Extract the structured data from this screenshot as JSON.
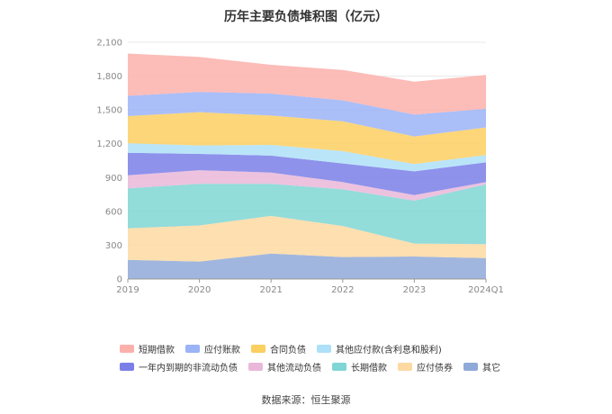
{
  "page": {
    "source": "数据来源：恒生聚源"
  },
  "chart_data": {
    "type": "area",
    "stacked": true,
    "title": "历年主要负债堆积图（亿元）",
    "x": [
      "2019",
      "2020",
      "2021",
      "2022",
      "2023",
      "2024Q1"
    ],
    "ylim": [
      0,
      2100
    ],
    "yticks": [
      "0",
      "300",
      "600",
      "900",
      "1,200",
      "1,500",
      "1,800",
      "2,100"
    ],
    "yticks_values": [
      0,
      300,
      600,
      900,
      1200,
      1500,
      1800,
      2100
    ],
    "grid": true,
    "legend_position": "bottom",
    "series": [
      {
        "name": "其它",
        "color": "#8fa9d8",
        "values": [
          170,
          155,
          225,
          195,
          200,
          185
        ]
      },
      {
        "name": "应付债券",
        "color": "#fdd9a2",
        "values": [
          280,
          320,
          335,
          275,
          115,
          125
        ]
      },
      {
        "name": "长期借款",
        "color": "#7fd6d4",
        "values": [
          355,
          370,
          285,
          325,
          380,
          530
        ]
      },
      {
        "name": "其他流动负债",
        "color": "#e9b7d9",
        "values": [
          115,
          120,
          100,
          65,
          50,
          20
        ]
      },
      {
        "name": "一年内到期的非流动负债",
        "color": "#7a7fe8",
        "values": [
          200,
          145,
          150,
          165,
          210,
          175
        ]
      },
      {
        "name": "其他应付款(含利息和股利)",
        "color": "#aee0f8",
        "values": [
          85,
          75,
          95,
          110,
          65,
          65
        ]
      },
      {
        "name": "合同负债",
        "color": "#fbcf60",
        "values": [
          240,
          295,
          260,
          265,
          245,
          245
        ]
      },
      {
        "name": "应付账款",
        "color": "#9bb3f7",
        "values": [
          180,
          180,
          195,
          185,
          195,
          165
        ]
      },
      {
        "name": "短期借款",
        "color": "#fcb0ab",
        "values": [
          375,
          310,
          255,
          270,
          290,
          300
        ]
      }
    ],
    "legend_order": [
      "短期借款",
      "应付账款",
      "合同负债",
      "其他应付款(含利息和股利)",
      "一年内到期的非流动负债",
      "其他流动负债",
      "长期借款",
      "应付债券",
      "其它"
    ]
  }
}
